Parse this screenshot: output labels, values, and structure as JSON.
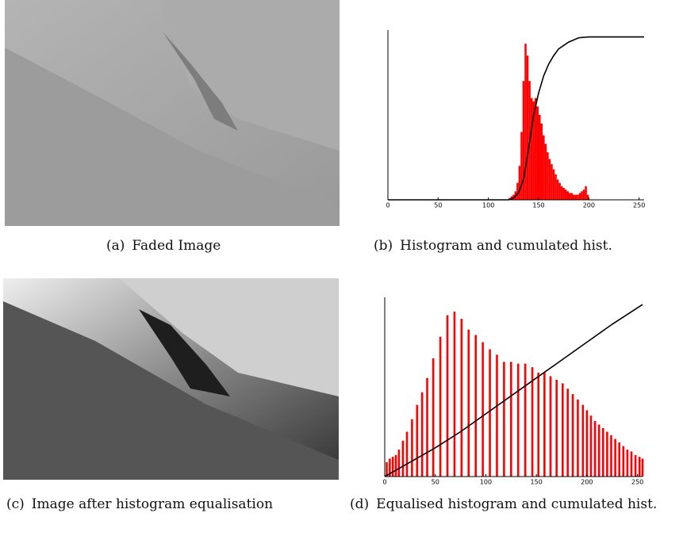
{
  "figure": {
    "panels": [
      {
        "label": "(a)",
        "caption": "Faded Image"
      },
      {
        "label": "(b)",
        "caption": "Histogram and cumulated hist."
      },
      {
        "label": "(c)",
        "caption": "Image after histogram equalisation"
      },
      {
        "label": "(d)",
        "caption": "Equalised histogram and cumulated hist."
      }
    ]
  },
  "chart_data": [
    {
      "type": "histogram",
      "bins": [
        120,
        122,
        124,
        126,
        128,
        130,
        132,
        134,
        136,
        138,
        140,
        142,
        144,
        146,
        148,
        150,
        152,
        154,
        156,
        158,
        160,
        162,
        164,
        166,
        168,
        170,
        172,
        174,
        176,
        178,
        180,
        182,
        184,
        186,
        188,
        190,
        192,
        194,
        196,
        198,
        200
      ],
      "values": [
        0.01,
        0.02,
        0.03,
        0.05,
        0.1,
        0.2,
        0.4,
        0.7,
        0.92,
        0.85,
        0.7,
        0.6,
        0.58,
        0.6,
        0.55,
        0.5,
        0.45,
        0.38,
        0.33,
        0.28,
        0.24,
        0.21,
        0.18,
        0.15,
        0.12,
        0.1,
        0.08,
        0.07,
        0.06,
        0.05,
        0.04,
        0.04,
        0.03,
        0.03,
        0.03,
        0.04,
        0.05,
        0.06,
        0.08,
        0.03
      ],
      "color": "#ff0000",
      "xlim": [
        0,
        255
      ],
      "xticks": [
        0,
        50,
        100,
        150,
        200,
        250
      ],
      "ylim": [
        0,
        1
      ],
      "line": {
        "x": [
          0,
          120,
          125,
          130,
          135,
          140,
          145,
          150,
          155,
          160,
          165,
          170,
          180,
          190,
          200,
          255
        ],
        "values": [
          0,
          0,
          0.01,
          0.04,
          0.12,
          0.3,
          0.5,
          0.63,
          0.73,
          0.8,
          0.85,
          0.89,
          0.93,
          0.955,
          0.96,
          0.96
        ],
        "color": "#000000"
      }
    },
    {
      "type": "bar",
      "x": [
        2,
        5,
        8,
        11,
        14,
        18,
        22,
        27,
        32,
        37,
        42,
        48,
        55,
        62,
        69,
        76,
        83,
        90,
        97,
        104,
        111,
        118,
        125,
        132,
        139,
        146,
        152,
        158,
        164,
        170,
        176,
        181,
        186,
        191,
        196,
        200,
        204,
        208,
        212,
        216,
        220,
        224,
        228,
        232,
        236,
        240,
        244,
        248,
        252,
        255
      ],
      "values": [
        0.08,
        0.1,
        0.11,
        0.12,
        0.15,
        0.2,
        0.25,
        0.32,
        0.4,
        0.47,
        0.55,
        0.66,
        0.78,
        0.9,
        0.92,
        0.88,
        0.82,
        0.79,
        0.75,
        0.71,
        0.68,
        0.64,
        0.64,
        0.63,
        0.63,
        0.61,
        0.58,
        0.58,
        0.56,
        0.54,
        0.52,
        0.49,
        0.46,
        0.43,
        0.4,
        0.37,
        0.34,
        0.31,
        0.29,
        0.27,
        0.25,
        0.23,
        0.21,
        0.19,
        0.17,
        0.15,
        0.14,
        0.12,
        0.11,
        0.1
      ],
      "color": "#ff0000",
      "xlim": [
        0,
        255
      ],
      "xticks": [
        0,
        50,
        100,
        150,
        200,
        250
      ],
      "ylim": [
        0,
        1
      ],
      "line": {
        "x": [
          0,
          25,
          50,
          75,
          100,
          125,
          150,
          175,
          200,
          225,
          255
        ],
        "values": [
          0,
          0.08,
          0.16,
          0.25,
          0.35,
          0.45,
          0.55,
          0.65,
          0.75,
          0.85,
          0.96
        ],
        "color": "#000000"
      }
    }
  ]
}
